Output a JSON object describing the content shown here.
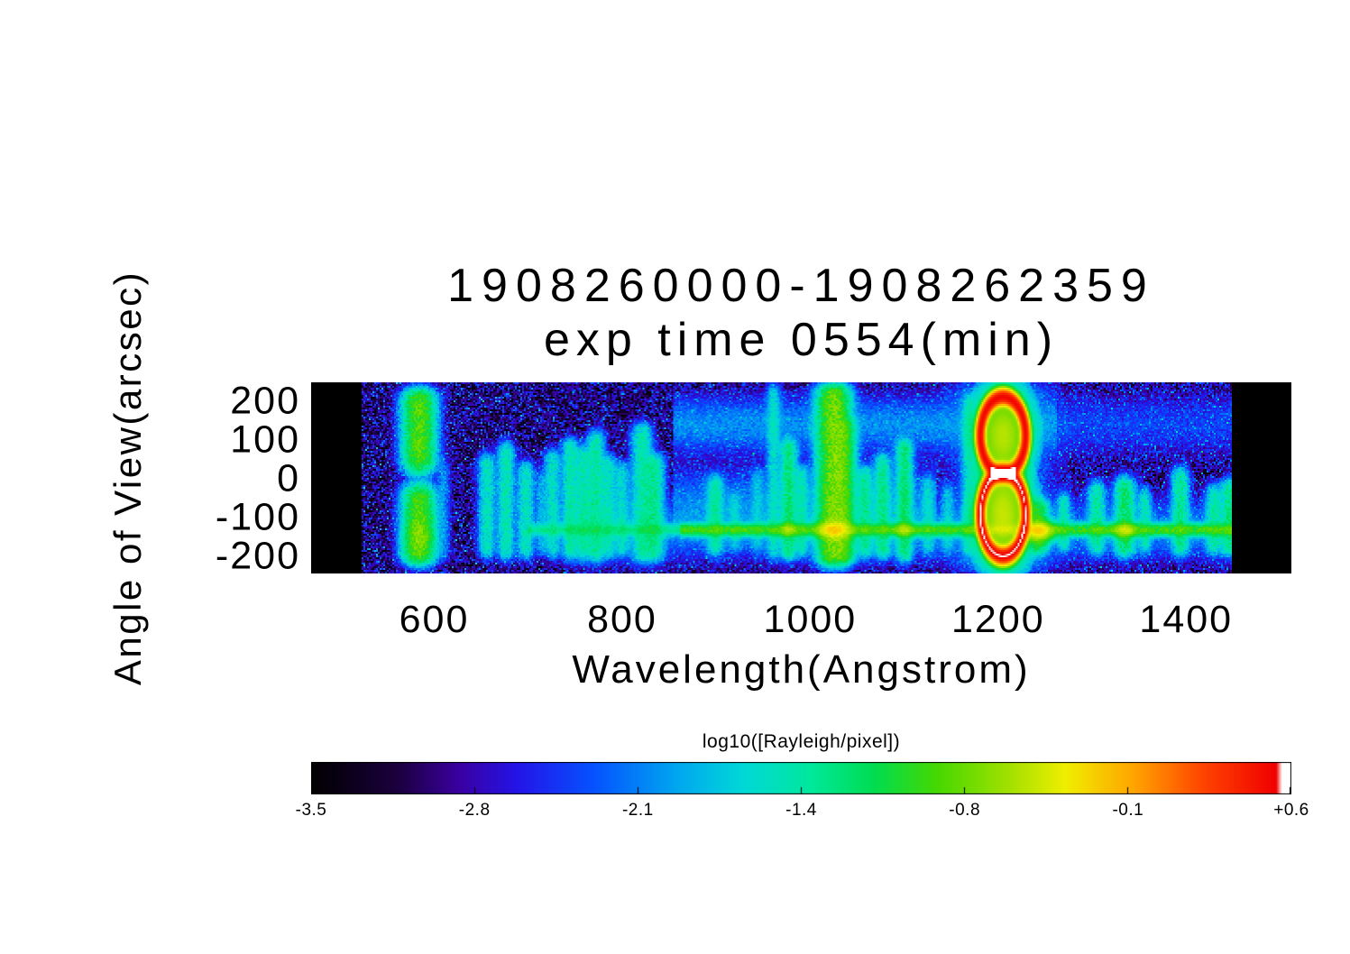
{
  "chart_data": {
    "type": "heatmap",
    "title": "1908260000-1908262359",
    "subtitle": "exp time 0554(min)",
    "xlabel": "Wavelength(Angstrom)",
    "ylabel": "Angle of View(arcsec)",
    "xlim": [
      469,
      1512
    ],
    "ylim": [
      -245,
      250
    ],
    "data_range": [
      523,
      1449
    ],
    "x_ticks": [
      600,
      800,
      1000,
      1200,
      1400
    ],
    "x_tick_labels": [
      "600",
      "800",
      "1000",
      "1200",
      "1400"
    ],
    "y_ticks": [
      200,
      100,
      0,
      -100,
      -200
    ],
    "y_tick_labels": [
      "200",
      "100",
      "0",
      "-100",
      "-200"
    ],
    "colorbar": {
      "title": "log10([Rayleigh/pixel])",
      "min": -3.5,
      "max": 0.6,
      "tick_labels": [
        "-3.5",
        "-2.8",
        "-2.1",
        "-1.4",
        "-0.8",
        "-0.1",
        "+0.6"
      ],
      "stops": [
        [
          0.0,
          "#000000"
        ],
        [
          0.09,
          "#1c0040"
        ],
        [
          0.15,
          "#3a00a0"
        ],
        [
          0.21,
          "#2414e8"
        ],
        [
          0.29,
          "#0554ff"
        ],
        [
          0.37,
          "#00a4f0"
        ],
        [
          0.44,
          "#00d8d8"
        ],
        [
          0.51,
          "#00e89c"
        ],
        [
          0.575,
          "#00dc50"
        ],
        [
          0.64,
          "#47d800"
        ],
        [
          0.71,
          "#a0e000"
        ],
        [
          0.77,
          "#f0ee00"
        ],
        [
          0.84,
          "#ffa400"
        ],
        [
          0.91,
          "#ff4400"
        ],
        [
          0.985,
          "#f00000"
        ],
        [
          0.991,
          "#ffffff"
        ],
        [
          1.0,
          "#ffffff"
        ]
      ]
    },
    "background": {
      "level": -2.95,
      "sigma": 0.4
    },
    "bands": [
      {
        "angle": -132,
        "sigma": 9,
        "wl": [
          700,
          862
        ],
        "level": -1.5
      },
      {
        "angle": -132,
        "sigma": 9,
        "wl": [
          862,
          1449
        ],
        "level": -0.95
      },
      {
        "angle": -132,
        "sigma": 42,
        "wl": [
          740,
          1449
        ],
        "level": -2.2
      },
      {
        "angle": -55,
        "sigma": 48,
        "wl": [
          855,
          1135
        ],
        "level": -2.3
      },
      {
        "angle": 140,
        "sigma": 40,
        "wl": [
          855,
          1262
        ],
        "level": -2.15
      },
      {
        "angle": 140,
        "sigma": 45,
        "wl": [
          1262,
          1449
        ],
        "level": -2.55
      }
    ],
    "lines": [
      {
        "wl": 584,
        "level": -0.85,
        "sigma": 9,
        "range": [
          -212,
          222
        ],
        "gap": [
          0,
          26,
          0.92
        ]
      },
      {
        "wl": 610,
        "level": -2.2,
        "sigma": 4,
        "range": [
          -200,
          40
        ]
      },
      {
        "wl": 656,
        "level": -1.55,
        "sigma": 5,
        "range": [
          -195,
          55
        ]
      },
      {
        "wl": 676,
        "level": -1.5,
        "sigma": 5,
        "range": [
          -200,
          85
        ]
      },
      {
        "wl": 697,
        "level": -1.55,
        "sigma": 5,
        "range": [
          -198,
          35
        ]
      },
      {
        "wl": 714,
        "level": -2.0,
        "sigma": 4,
        "range": [
          -190,
          10
        ]
      },
      {
        "wl": 726,
        "level": -1.6,
        "sigma": 5,
        "range": [
          -196,
          65
        ]
      },
      {
        "wl": 745,
        "level": -1.5,
        "sigma": 5,
        "range": [
          -200,
          95
        ]
      },
      {
        "wl": 759,
        "level": -1.5,
        "sigma": 5,
        "range": [
          -202,
          75
        ]
      },
      {
        "wl": 772,
        "level": -1.45,
        "sigma": 5,
        "range": [
          -206,
          115
        ]
      },
      {
        "wl": 785,
        "level": -1.6,
        "sigma": 5,
        "range": [
          -198,
          55
        ]
      },
      {
        "wl": 800,
        "level": -1.7,
        "sigma": 5,
        "range": [
          -192,
          35
        ]
      },
      {
        "wl": 821,
        "level": -1.5,
        "sigma": 6,
        "range": [
          -208,
          135
        ]
      },
      {
        "wl": 834,
        "level": -1.4,
        "sigma": 6,
        "range": [
          -205,
          55
        ]
      },
      {
        "wl": 899,
        "level": -1.5,
        "sigma": 5,
        "range": [
          -188,
          0
        ]
      },
      {
        "wl": 920,
        "level": -1.9,
        "sigma": 4,
        "range": [
          -180,
          -40
        ]
      },
      {
        "wl": 944,
        "level": -2.0,
        "sigma": 4,
        "range": [
          -185,
          20
        ]
      },
      {
        "wl": 961,
        "level": -1.7,
        "sigma": 4,
        "range": [
          -200,
          235
        ]
      },
      {
        "wl": 977,
        "level": -1.3,
        "sigma": 5,
        "range": [
          -200,
          95
        ]
      },
      {
        "wl": 991,
        "level": -1.6,
        "sigma": 4,
        "range": [
          -195,
          25
        ]
      },
      {
        "wl": 1025,
        "level": -0.75,
        "sigma": 9,
        "range": [
          -215,
          235
        ]
      },
      {
        "wl": 1037,
        "level": -1.1,
        "sigma": 6,
        "range": [
          -210,
          150
        ]
      },
      {
        "wl": 1058,
        "level": -1.45,
        "sigma": 5,
        "range": [
          -195,
          25
        ]
      },
      {
        "wl": 1077,
        "level": -1.4,
        "sigma": 5,
        "range": [
          -198,
          55
        ]
      },
      {
        "wl": 1100,
        "level": -1.3,
        "sigma": 5,
        "range": [
          -205,
          95
        ]
      },
      {
        "wl": 1125,
        "level": -1.8,
        "sigma": 4,
        "range": [
          -190,
          0
        ]
      },
      {
        "wl": 1146,
        "level": -1.9,
        "sigma": 4,
        "range": [
          -185,
          -20
        ]
      },
      {
        "wl": 1168,
        "level": -1.75,
        "sigma": 4,
        "range": [
          -195,
          215
        ]
      },
      {
        "wl": 1205,
        "level": -1.95,
        "sigma": 26,
        "range": [
          -235,
          245
        ]
      },
      {
        "wl": 1243,
        "level": -1.1,
        "sigma": 6,
        "range": [
          -185,
          -60
        ]
      },
      {
        "wl": 1270,
        "level": -1.6,
        "sigma": 4,
        "range": [
          -180,
          -45
        ]
      },
      {
        "wl": 1305,
        "level": -1.45,
        "sigma": 5,
        "range": [
          -188,
          -15
        ]
      },
      {
        "wl": 1335,
        "level": -1.25,
        "sigma": 6,
        "range": [
          -192,
          -5
        ]
      },
      {
        "wl": 1356,
        "level": -1.6,
        "sigma": 4,
        "range": [
          -182,
          -35
        ]
      },
      {
        "wl": 1394,
        "level": -1.4,
        "sigma": 5,
        "range": [
          -190,
          20
        ]
      },
      {
        "wl": 1430,
        "level": -1.5,
        "sigma": 5,
        "range": [
          -186,
          -25
        ]
      },
      {
        "wl": 1446,
        "level": -1.35,
        "sigma": 5,
        "range": [
          -190,
          -10
        ]
      }
    ],
    "blobs": [
      {
        "wl": 1025,
        "angle": -132,
        "sw": 10,
        "sa": 14,
        "level": -0.45
      },
      {
        "wl": 1243,
        "angle": -135,
        "sw": 9,
        "sa": 14,
        "level": -0.35
      },
      {
        "wl": 1100,
        "angle": -132,
        "sw": 6,
        "sa": 10,
        "level": -0.8
      },
      {
        "wl": 1335,
        "angle": -133,
        "sw": 7,
        "sa": 11,
        "level": -0.7
      },
      {
        "wl": 977,
        "angle": -132,
        "sw": 6,
        "sa": 10,
        "level": -0.9
      },
      {
        "wl": 584,
        "angle": -150,
        "sw": 8,
        "sa": 25,
        "level": -1.1
      }
    ],
    "rings": [
      {
        "wl": 1205,
        "angle": 112,
        "a": 24,
        "b": 100,
        "edge_level": 0.5,
        "edge_sigma": 0.11,
        "fill_level": -0.55
      },
      {
        "wl": 1205,
        "angle": -92,
        "a": 24,
        "b": 108,
        "edge_level": 0.55,
        "edge_sigma": 0.11,
        "fill_level": -0.5
      }
    ]
  }
}
